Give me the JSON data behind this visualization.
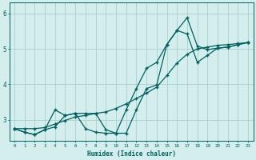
{
  "xlabel": "Humidex (Indice chaleur)",
  "background_color": "#d4eeed",
  "grid_color": "#aad0cc",
  "line_color": "#006060",
  "xlim": [
    -0.5,
    23.5
  ],
  "ylim": [
    2.4,
    6.3
  ],
  "xticks": [
    0,
    1,
    2,
    3,
    4,
    5,
    6,
    7,
    8,
    9,
    10,
    11,
    12,
    13,
    14,
    15,
    16,
    17,
    18,
    19,
    20,
    21,
    22,
    23
  ],
  "yticks": [
    3,
    4,
    5,
    6
  ],
  "curve1_x": [
    0,
    1,
    2,
    3,
    4,
    5,
    6,
    7,
    8,
    9,
    10,
    11,
    12,
    13,
    14,
    15,
    16,
    17,
    18,
    19,
    20,
    21,
    22,
    23
  ],
  "curve1_y": [
    2.75,
    2.65,
    2.58,
    2.72,
    2.8,
    3.12,
    3.18,
    2.75,
    2.65,
    2.62,
    2.62,
    3.28,
    3.88,
    4.45,
    4.62,
    5.12,
    5.52,
    5.88,
    5.08,
    4.98,
    5.02,
    5.05,
    5.12,
    5.18
  ],
  "curve2_x": [
    0,
    1,
    2,
    3,
    4,
    5,
    6,
    7,
    8,
    9,
    10,
    11,
    12,
    13,
    14,
    15,
    16,
    17,
    18,
    19,
    20,
    21,
    22,
    23
  ],
  "curve2_y": [
    2.75,
    2.65,
    2.58,
    2.72,
    3.28,
    3.12,
    3.18,
    3.18,
    3.18,
    2.72,
    2.62,
    2.62,
    3.28,
    3.88,
    3.98,
    5.12,
    5.52,
    5.42,
    4.62,
    4.82,
    5.02,
    5.05,
    5.12,
    5.18
  ],
  "curve3_x": [
    0,
    1,
    2,
    3,
    4,
    5,
    6,
    7,
    8,
    9,
    10,
    11,
    12,
    13,
    14,
    15,
    16,
    17,
    18,
    19,
    20,
    21,
    22,
    23
  ],
  "curve3_y": [
    2.75,
    2.75,
    2.75,
    2.78,
    2.88,
    2.98,
    3.08,
    3.12,
    3.18,
    3.22,
    3.32,
    3.45,
    3.6,
    3.75,
    3.92,
    4.25,
    4.6,
    4.85,
    5.0,
    5.05,
    5.1,
    5.12,
    5.15,
    5.18
  ]
}
